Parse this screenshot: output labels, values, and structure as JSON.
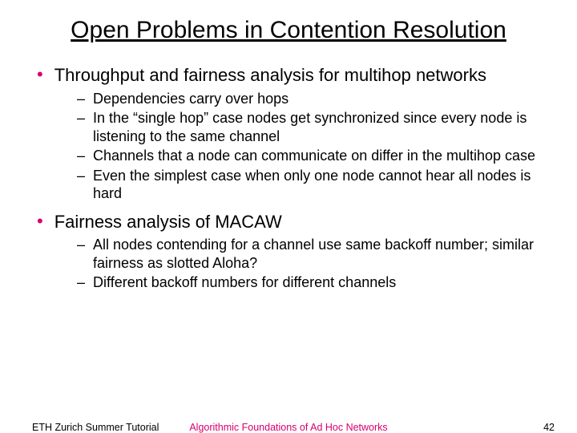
{
  "title_fontsize": 30,
  "l1_fontsize": 22,
  "l2_fontsize": 18,
  "footer_fontsize": 12.5,
  "accent_color": "#d6006e",
  "text_color": "#000000",
  "background_color": "#ffffff",
  "slide": {
    "title": "Open Problems in Contention Resolution",
    "bullets": [
      {
        "text": "Throughput and fairness analysis for multihop networks",
        "sub": [
          "Dependencies carry over hops",
          "In the “single hop” case nodes get synchronized since every node is listening to the same channel",
          "Channels that a node can communicate on differ in the multihop case",
          "Even the simplest case when only one node cannot hear all nodes is hard"
        ]
      },
      {
        "text": "Fairness analysis of MACAW",
        "sub": [
          "All nodes contending for a channel use same backoff number; similar fairness as slotted Aloha?",
          "Different backoff numbers for different channels"
        ]
      }
    ]
  },
  "footer": {
    "left": "ETH Zurich Summer Tutorial",
    "center": "Algorithmic Foundations of Ad Hoc Networks",
    "page": "42"
  }
}
